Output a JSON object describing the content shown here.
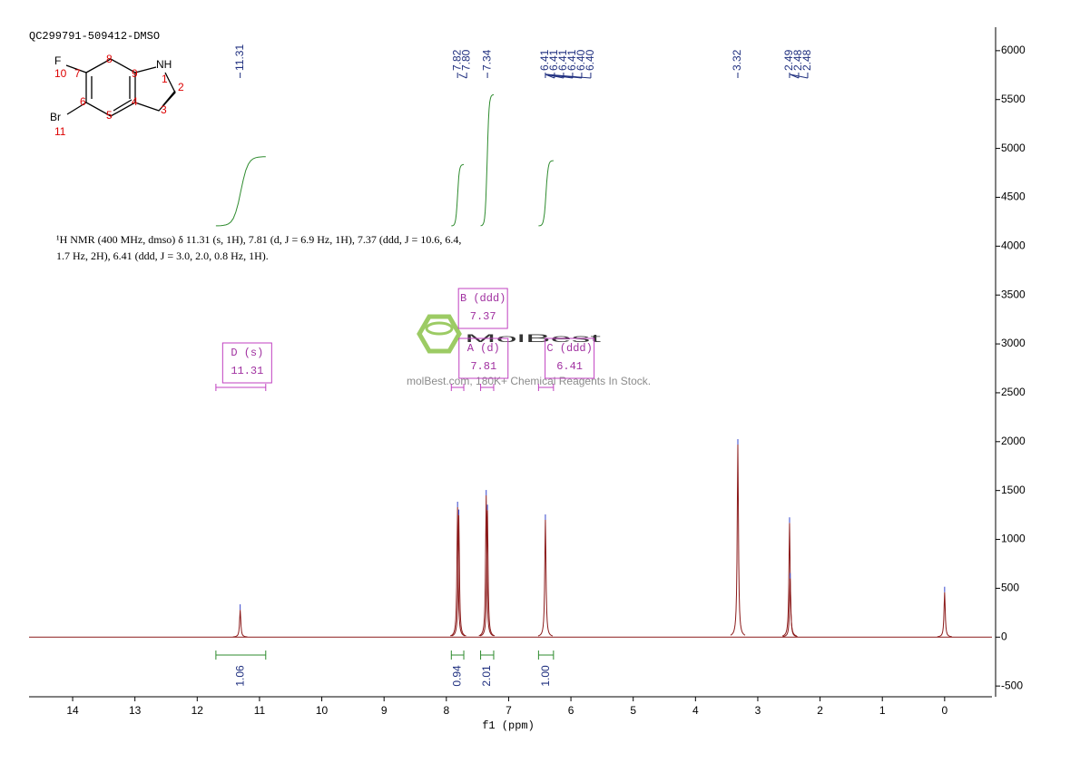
{
  "chart_data": {
    "type": "nmr",
    "sample": "QC299791-509412-DMSO",
    "description": [
      "¹H NMR (400 MHz, dmso) δ 11.31 (s, 1H), 7.81 (d, J = 6.9 Hz, 1H), 7.37 (ddd, J = 10.6, 6.4,",
      "1.7 Hz, 2H), 6.41 (ddd, J = 3.0, 2.0, 0.8 Hz, 1H)."
    ],
    "molecule": {
      "labels": [
        "F",
        "10",
        "7",
        "8",
        "9",
        "NH",
        "1",
        "2",
        "3",
        "4",
        "5",
        "6",
        "Br",
        "11"
      ]
    },
    "peak_labels": [
      "11.31",
      "7.82",
      "7.80",
      "7.34",
      "6.41",
      "6.41",
      "6.41",
      "6.41",
      "6.40",
      "6.40",
      "3.32",
      "2.49",
      "2.48",
      "2.48"
    ],
    "peak_label_x": [
      11.31,
      7.82,
      7.8,
      7.34,
      6.41,
      6.41,
      6.41,
      6.41,
      6.4,
      6.4,
      3.32,
      2.49,
      2.48,
      2.48
    ],
    "x": [
      11.31,
      7.82,
      7.8,
      7.36,
      7.34,
      6.41,
      3.32,
      2.49,
      2.48,
      0.0
    ],
    "values": [
      280,
      1330,
      1250,
      1450,
      1300,
      1200,
      1970,
      1170,
      600,
      460
    ],
    "color": "#8b1a1a",
    "multiplets": [
      {
        "label": "D (s)",
        "shift": "11.31"
      },
      {
        "label": "B (ddd)",
        "shift": "7.37"
      },
      {
        "label": "A (d)",
        "shift": "7.81"
      },
      {
        "label": "C (ddd)",
        "shift": "6.41"
      }
    ],
    "integrals": [
      {
        "x": [
          11.7,
          10.9
        ],
        "value": 1.06,
        "label": "1.06"
      },
      {
        "x": [
          7.92,
          7.72
        ],
        "value": 0.94,
        "label": "0.94"
      },
      {
        "x": [
          7.45,
          7.24
        ],
        "value": 2.01,
        "label": "2.01"
      },
      {
        "x": [
          6.52,
          6.28
        ],
        "value": 1.0,
        "label": "1.00"
      }
    ],
    "watermark": {
      "logo": "MolBest",
      "text": "molBest.com, 180K+ Chemical Reagents In Stock."
    },
    "xlabel": "f1 (ppm)",
    "xlim": [
      14.7,
      -0.76
    ],
    "xticks": [
      14,
      13,
      12,
      11,
      10,
      9,
      8,
      7,
      6,
      5,
      4,
      3,
      2,
      1,
      0
    ],
    "ylim": [
      -610,
      6240
    ],
    "yticks": [
      -500,
      0,
      500,
      1000,
      1500,
      2000,
      2500,
      3000,
      3500,
      4000,
      4500,
      5000,
      5500,
      6000
    ]
  }
}
